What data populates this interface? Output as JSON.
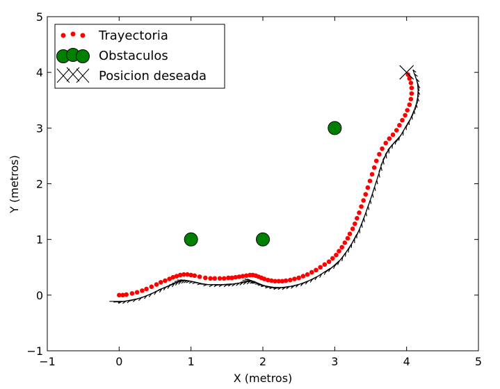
{
  "chart_data": {
    "type": "scatter",
    "xlabel": "X (metros)",
    "ylabel": "Y (metros)",
    "xlim": [
      -1,
      5
    ],
    "ylim": [
      -1,
      5
    ],
    "xticks": [
      "−1",
      "0",
      "1",
      "2",
      "3",
      "4",
      "5"
    ],
    "yticks": [
      "−1",
      "0",
      "1",
      "2",
      "3",
      "4",
      "5"
    ],
    "grid": false,
    "legend_position": "top-left",
    "colors": {
      "trajectory": "#ff0000",
      "obstacles": "#007f00",
      "target": "#000000",
      "arrows": "#000000"
    },
    "series": [
      {
        "name": "Trayectoria",
        "marker": "red-dot",
        "x": [
          0.0,
          0.05,
          0.1,
          0.18,
          0.25,
          0.32,
          0.38,
          0.45,
          0.52,
          0.58,
          0.64,
          0.7,
          0.75,
          0.8,
          0.85,
          0.9,
          0.95,
          1.0,
          1.05,
          1.12,
          1.2,
          1.27,
          1.33,
          1.4,
          1.46,
          1.52,
          1.57,
          1.62,
          1.67,
          1.72,
          1.77,
          1.82,
          1.86,
          1.9,
          1.94,
          1.98,
          2.02,
          2.07,
          2.12,
          2.17,
          2.22,
          2.27,
          2.32,
          2.38,
          2.44,
          2.5,
          2.56,
          2.62,
          2.68,
          2.74,
          2.8,
          2.86,
          2.92,
          2.97,
          3.02,
          3.06,
          3.1,
          3.14,
          3.18,
          3.21,
          3.25,
          3.28,
          3.31,
          3.34,
          3.37,
          3.4,
          3.43,
          3.46,
          3.49,
          3.52,
          3.55,
          3.58,
          3.62,
          3.66,
          3.71,
          3.76,
          3.81,
          3.86,
          3.9,
          3.94,
          3.98,
          4.01,
          4.04,
          4.06,
          4.07,
          4.07,
          4.06,
          4.04,
          4.02
        ],
        "y": [
          0.0,
          0.0,
          0.01,
          0.03,
          0.05,
          0.08,
          0.11,
          0.15,
          0.19,
          0.23,
          0.26,
          0.29,
          0.32,
          0.34,
          0.36,
          0.37,
          0.37,
          0.36,
          0.35,
          0.33,
          0.31,
          0.3,
          0.3,
          0.3,
          0.3,
          0.31,
          0.31,
          0.32,
          0.33,
          0.34,
          0.35,
          0.36,
          0.36,
          0.35,
          0.33,
          0.31,
          0.29,
          0.27,
          0.26,
          0.25,
          0.25,
          0.25,
          0.26,
          0.27,
          0.29,
          0.31,
          0.34,
          0.37,
          0.41,
          0.45,
          0.5,
          0.55,
          0.6,
          0.66,
          0.72,
          0.79,
          0.86,
          0.94,
          1.02,
          1.1,
          1.19,
          1.28,
          1.38,
          1.48,
          1.59,
          1.7,
          1.81,
          1.93,
          2.05,
          2.17,
          2.29,
          2.41,
          2.53,
          2.63,
          2.73,
          2.81,
          2.88,
          2.96,
          3.05,
          3.14,
          3.23,
          3.32,
          3.42,
          3.52,
          3.62,
          3.72,
          3.81,
          3.89,
          3.96
        ]
      },
      {
        "name": "Obstaculos",
        "marker": "green-circle",
        "x": [
          1,
          2,
          3
        ],
        "y": [
          1,
          1,
          3
        ]
      },
      {
        "name": "Posicion deseada",
        "marker": "x-cross",
        "x": [
          4
        ],
        "y": [
          4
        ]
      }
    ]
  }
}
